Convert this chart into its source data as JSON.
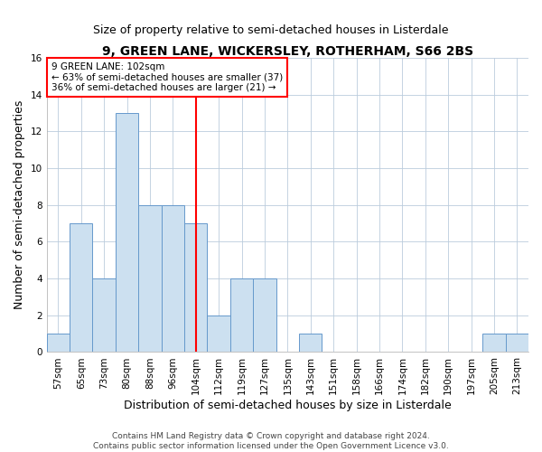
{
  "title": "9, GREEN LANE, WICKERSLEY, ROTHERHAM, S66 2BS",
  "subtitle": "Size of property relative to semi-detached houses in Listerdale",
  "xlabel": "Distribution of semi-detached houses by size in Listerdale",
  "ylabel": "Number of semi-detached properties",
  "categories": [
    "57sqm",
    "65sqm",
    "73sqm",
    "80sqm",
    "88sqm",
    "96sqm",
    "104sqm",
    "112sqm",
    "119sqm",
    "127sqm",
    "135sqm",
    "143sqm",
    "151sqm",
    "158sqm",
    "166sqm",
    "174sqm",
    "182sqm",
    "190sqm",
    "197sqm",
    "205sqm",
    "213sqm"
  ],
  "values": [
    1,
    7,
    4,
    13,
    8,
    8,
    7,
    2,
    4,
    4,
    0,
    1,
    0,
    0,
    0,
    0,
    0,
    0,
    0,
    1,
    1
  ],
  "bar_color": "#cce0f0",
  "bar_edge_color": "#6699cc",
  "highlight_index": 6,
  "annotation_text_line1": "9 GREEN LANE: 102sqm",
  "annotation_text_line2": "← 63% of semi-detached houses are smaller (37)",
  "annotation_text_line3": "36% of semi-detached houses are larger (21) →",
  "ylim": [
    0,
    16
  ],
  "yticks": [
    0,
    2,
    4,
    6,
    8,
    10,
    12,
    14,
    16
  ],
  "footnote1": "Contains HM Land Registry data © Crown copyright and database right 2024.",
  "footnote2": "Contains public sector information licensed under the Open Government Licence v3.0.",
  "grid_color": "#bbccdd",
  "title_fontsize": 10,
  "subtitle_fontsize": 9,
  "axis_label_fontsize": 9,
  "tick_fontsize": 7.5,
  "red_line_color": "red"
}
